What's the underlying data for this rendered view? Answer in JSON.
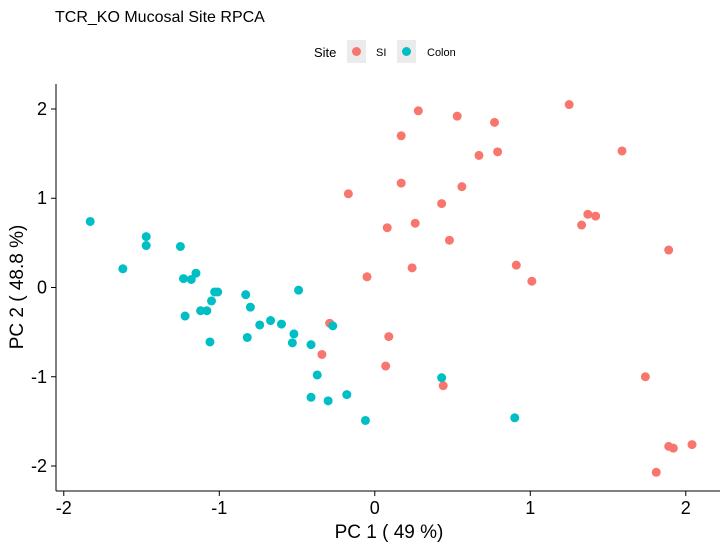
{
  "chart_data": {
    "type": "scatter",
    "title": "TCR_KO Mucosal Site RPCA",
    "xlabel": "PC 1 ( 49 %)",
    "ylabel": "PC 2 ( 48.8 %)",
    "xlim": [
      -2.05,
      2.22
    ],
    "ylim": [
      -2.28,
      2.28
    ],
    "x_ticks": [
      -2,
      -1,
      0,
      1,
      2
    ],
    "x_tick_labels": [
      "-2",
      "-1",
      "0",
      "1",
      "2"
    ],
    "y_ticks": [
      -2,
      -1,
      0,
      1,
      2
    ],
    "y_tick_labels": [
      "-2",
      "-1",
      "0",
      "1",
      "2"
    ],
    "grid": false,
    "legend": {
      "title": "Site",
      "position": "top"
    },
    "series": [
      {
        "name": "SI",
        "color": "#F8766D",
        "points": [
          [
            0.28,
            1.98
          ],
          [
            0.53,
            1.92
          ],
          [
            0.77,
            1.85
          ],
          [
            1.25,
            2.05
          ],
          [
            0.17,
            1.7
          ],
          [
            0.67,
            1.48
          ],
          [
            0.79,
            1.52
          ],
          [
            1.59,
            1.53
          ],
          [
            0.17,
            1.17
          ],
          [
            0.56,
            1.13
          ],
          [
            -0.17,
            1.05
          ],
          [
            0.43,
            0.94
          ],
          [
            1.37,
            0.82
          ],
          [
            1.42,
            0.8
          ],
          [
            1.33,
            0.7
          ],
          [
            0.08,
            0.67
          ],
          [
            0.26,
            0.72
          ],
          [
            0.48,
            0.53
          ],
          [
            1.89,
            0.42
          ],
          [
            0.24,
            0.22
          ],
          [
            0.91,
            0.25
          ],
          [
            -0.05,
            0.12
          ],
          [
            1.01,
            0.07
          ],
          [
            -0.29,
            -0.4
          ],
          [
            0.09,
            -0.55
          ],
          [
            -0.34,
            -0.75
          ],
          [
            0.07,
            -0.88
          ],
          [
            1.74,
            -1.0
          ],
          [
            0.44,
            -1.1
          ],
          [
            1.89,
            -1.78
          ],
          [
            1.92,
            -1.8
          ],
          [
            2.04,
            -1.76
          ],
          [
            1.81,
            -2.07
          ]
        ]
      },
      {
        "name": "Colon",
        "color": "#00BFC4",
        "points": [
          [
            -1.83,
            0.74
          ],
          [
            -1.47,
            0.57
          ],
          [
            -1.47,
            0.47
          ],
          [
            -1.25,
            0.46
          ],
          [
            -1.62,
            0.21
          ],
          [
            -1.23,
            0.1
          ],
          [
            -1.18,
            0.09
          ],
          [
            -1.15,
            0.16
          ],
          [
            -1.03,
            -0.05
          ],
          [
            -1.01,
            -0.05
          ],
          [
            -1.05,
            -0.15
          ],
          [
            -1.12,
            -0.26
          ],
          [
            -1.08,
            -0.26
          ],
          [
            -1.22,
            -0.32
          ],
          [
            -0.83,
            -0.08
          ],
          [
            -0.8,
            -0.22
          ],
          [
            -0.67,
            -0.37
          ],
          [
            -0.74,
            -0.42
          ],
          [
            -0.6,
            -0.41
          ],
          [
            -0.49,
            -0.03
          ],
          [
            -0.52,
            -0.52
          ],
          [
            -0.53,
            -0.62
          ],
          [
            -1.06,
            -0.61
          ],
          [
            -0.82,
            -0.56
          ],
          [
            -0.27,
            -0.43
          ],
          [
            -0.41,
            -0.64
          ],
          [
            -0.37,
            -0.98
          ],
          [
            -0.41,
            -1.23
          ],
          [
            -0.3,
            -1.27
          ],
          [
            -0.18,
            -1.2
          ],
          [
            -0.06,
            -1.49
          ],
          [
            0.43,
            -1.01
          ],
          [
            0.9,
            -1.46
          ]
        ]
      }
    ]
  }
}
